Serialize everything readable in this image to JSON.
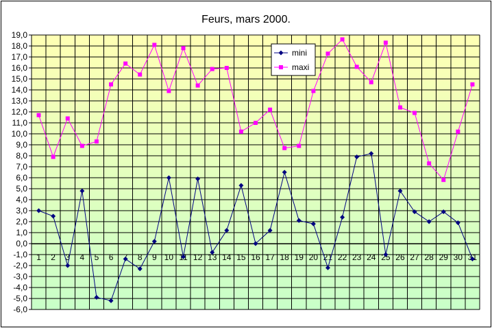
{
  "chart_data": {
    "type": "line",
    "title": "Feurs, mars 2000.",
    "xlabel": "",
    "ylabel": "",
    "ylim": [
      -6,
      19
    ],
    "ytick_step": 1,
    "ytick_labels": [
      "19,0",
      "18,0",
      "17,0",
      "16,0",
      "15,0",
      "14,0",
      "13,0",
      "12,0",
      "11,0",
      "10,0",
      "9,0",
      "8,0",
      "7,0",
      "6,0",
      "5,0",
      "4,0",
      "3,0",
      "2,0",
      "1,0",
      "0,0",
      "-1,0",
      "-2,0",
      "-3,0",
      "-4,0",
      "-5,0",
      "-6,0"
    ],
    "categories": [
      "1",
      "2",
      "3",
      "4",
      "5",
      "6",
      "7",
      "8",
      "9",
      "10",
      "11",
      "12",
      "13",
      "14",
      "15",
      "16",
      "17",
      "18",
      "19",
      "20",
      "21",
      "22",
      "23",
      "24",
      "25",
      "26",
      "27",
      "28",
      "29",
      "30",
      "31"
    ],
    "grid": true,
    "legend_position": "top-center",
    "series": [
      {
        "name": "mini",
        "color": "#000080",
        "marker": "diamond",
        "values": [
          3.0,
          2.5,
          -2.0,
          4.8,
          -4.9,
          -5.2,
          -1.4,
          -2.3,
          0.2,
          6.0,
          -1.2,
          5.9,
          -0.8,
          1.2,
          5.3,
          0.0,
          1.2,
          6.5,
          2.1,
          1.8,
          -2.2,
          2.4,
          7.9,
          8.2,
          -1.0,
          4.8,
          2.9,
          2.0,
          2.9,
          1.9,
          -1.4
        ]
      },
      {
        "name": "maxi",
        "color": "#ff00ff",
        "marker": "square",
        "values": [
          11.7,
          7.9,
          11.4,
          8.9,
          9.3,
          14.5,
          16.4,
          15.4,
          18.1,
          13.9,
          17.8,
          14.4,
          15.9,
          16.0,
          10.2,
          11.0,
          12.2,
          8.7,
          8.9,
          13.9,
          17.3,
          18.6,
          16.1,
          14.7,
          18.3,
          12.4,
          11.9,
          7.3,
          5.8,
          10.2,
          14.5
        ]
      }
    ]
  }
}
